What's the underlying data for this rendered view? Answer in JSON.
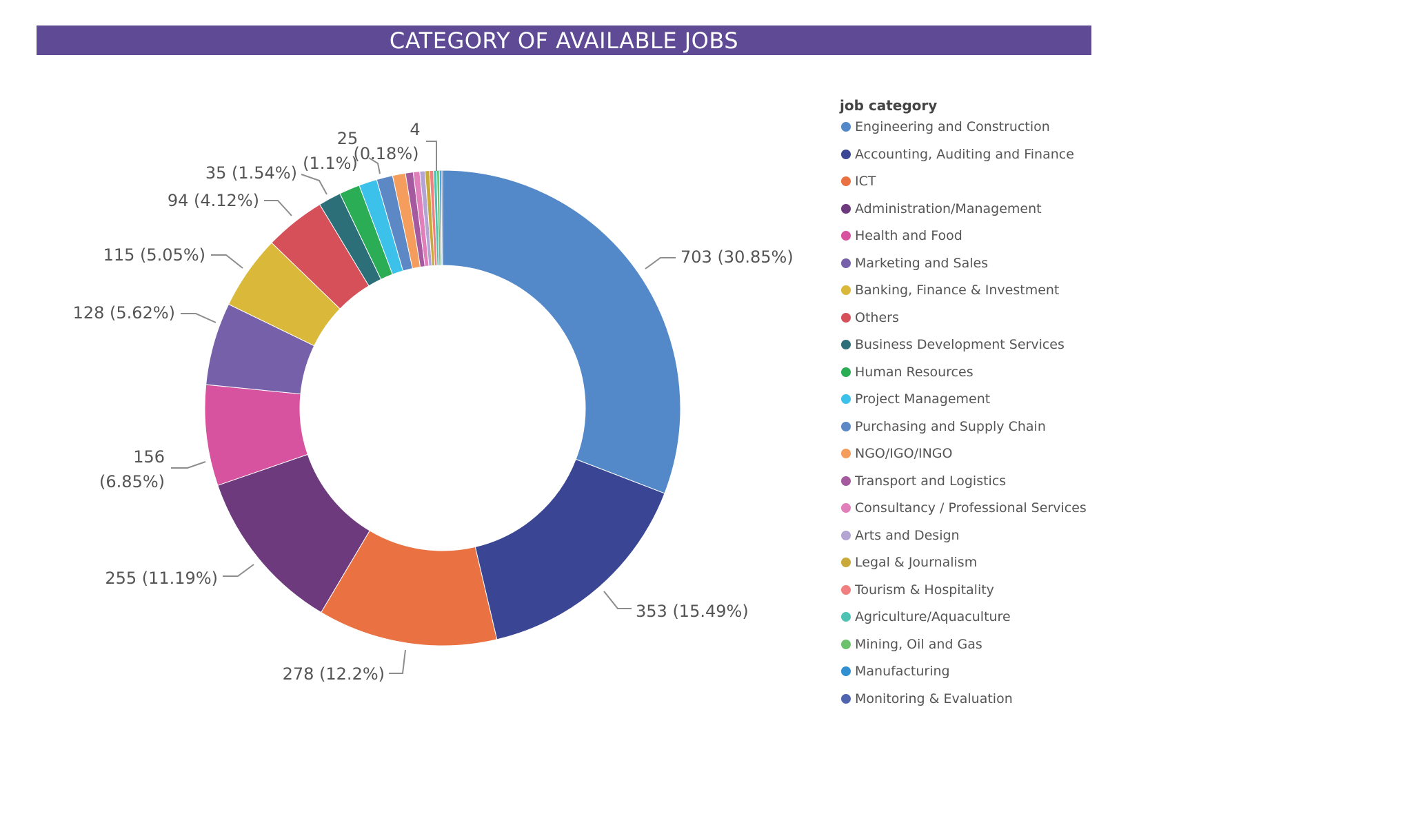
{
  "title": "CATEGORY OF AVAILABLE JOBS",
  "legend_title": "job category",
  "chart_data": {
    "type": "pie",
    "style": "donut",
    "title": "CATEGORY OF AVAILABLE JOBS",
    "legend_title": "job category",
    "legend_position": "right",
    "slices": [
      {
        "name": "Engineering and Construction",
        "value": 703,
        "label": "703 (30.85%)",
        "color": "#5389c8"
      },
      {
        "name": "Accounting, Auditing and Finance",
        "value": 353,
        "label": "353 (15.49%)",
        "color": "#3a4593"
      },
      {
        "name": "ICT",
        "value": 278,
        "label": "278 (12.2%)",
        "color": "#e97142"
      },
      {
        "name": "Administration/Management",
        "value": 255,
        "label": "255 (11.19%)",
        "color": "#6e3a7e"
      },
      {
        "name": "Health and Food",
        "value": 156,
        "label": "156 (6.85%)",
        "color": "#d7529f"
      },
      {
        "name": "Marketing and Sales",
        "value": 128,
        "label": "128 (5.62%)",
        "color": "#7660aa"
      },
      {
        "name": "Banking, Finance & Investment",
        "value": 115,
        "label": "115 (5.05%)",
        "color": "#d9b83a"
      },
      {
        "name": "Others",
        "value": 94,
        "label": "94 (4.12%)",
        "color": "#d6505a"
      },
      {
        "name": "Business Development Services",
        "value": 35,
        "label": "35 (1.54%)",
        "color": "#2d6f78"
      },
      {
        "name": "Human Resources",
        "value": 32,
        "label": "",
        "color": "#2bad55"
      },
      {
        "name": "Project Management",
        "value": 28,
        "label": "",
        "color": "#3bc1ea"
      },
      {
        "name": "Purchasing and Supply Chain",
        "value": 25,
        "label": "25 (1.1%)",
        "color": "#5c89c6"
      },
      {
        "name": "NGO/IGO/INGO",
        "value": 20,
        "label": "",
        "color": "#f59d5c"
      },
      {
        "name": "Transport and Logistics",
        "value": 12,
        "label": "",
        "color": "#a55aa0"
      },
      {
        "name": "Consultancy / Professional Services",
        "value": 10,
        "label": "",
        "color": "#e07fba"
      },
      {
        "name": "Arts and Design",
        "value": 8,
        "label": "",
        "color": "#b3a4d4"
      },
      {
        "name": "Legal & Journalism",
        "value": 7,
        "label": "",
        "color": "#c8a93a"
      },
      {
        "name": "Tourism & Hospitality",
        "value": 6,
        "label": "",
        "color": "#f08080"
      },
      {
        "name": "Agriculture/Aquaculture",
        "value": 5,
        "label": "",
        "color": "#4fc3b3"
      },
      {
        "name": "Mining, Oil and Gas",
        "value": 4,
        "label": "4 (0.18%)",
        "color": "#6cc26c"
      },
      {
        "name": "Manufacturing",
        "value": 3,
        "label": "",
        "color": "#2f8fd1"
      },
      {
        "name": "Monitoring & Evaluation",
        "value": 2,
        "label": "",
        "color": "#4f65b0"
      }
    ]
  }
}
